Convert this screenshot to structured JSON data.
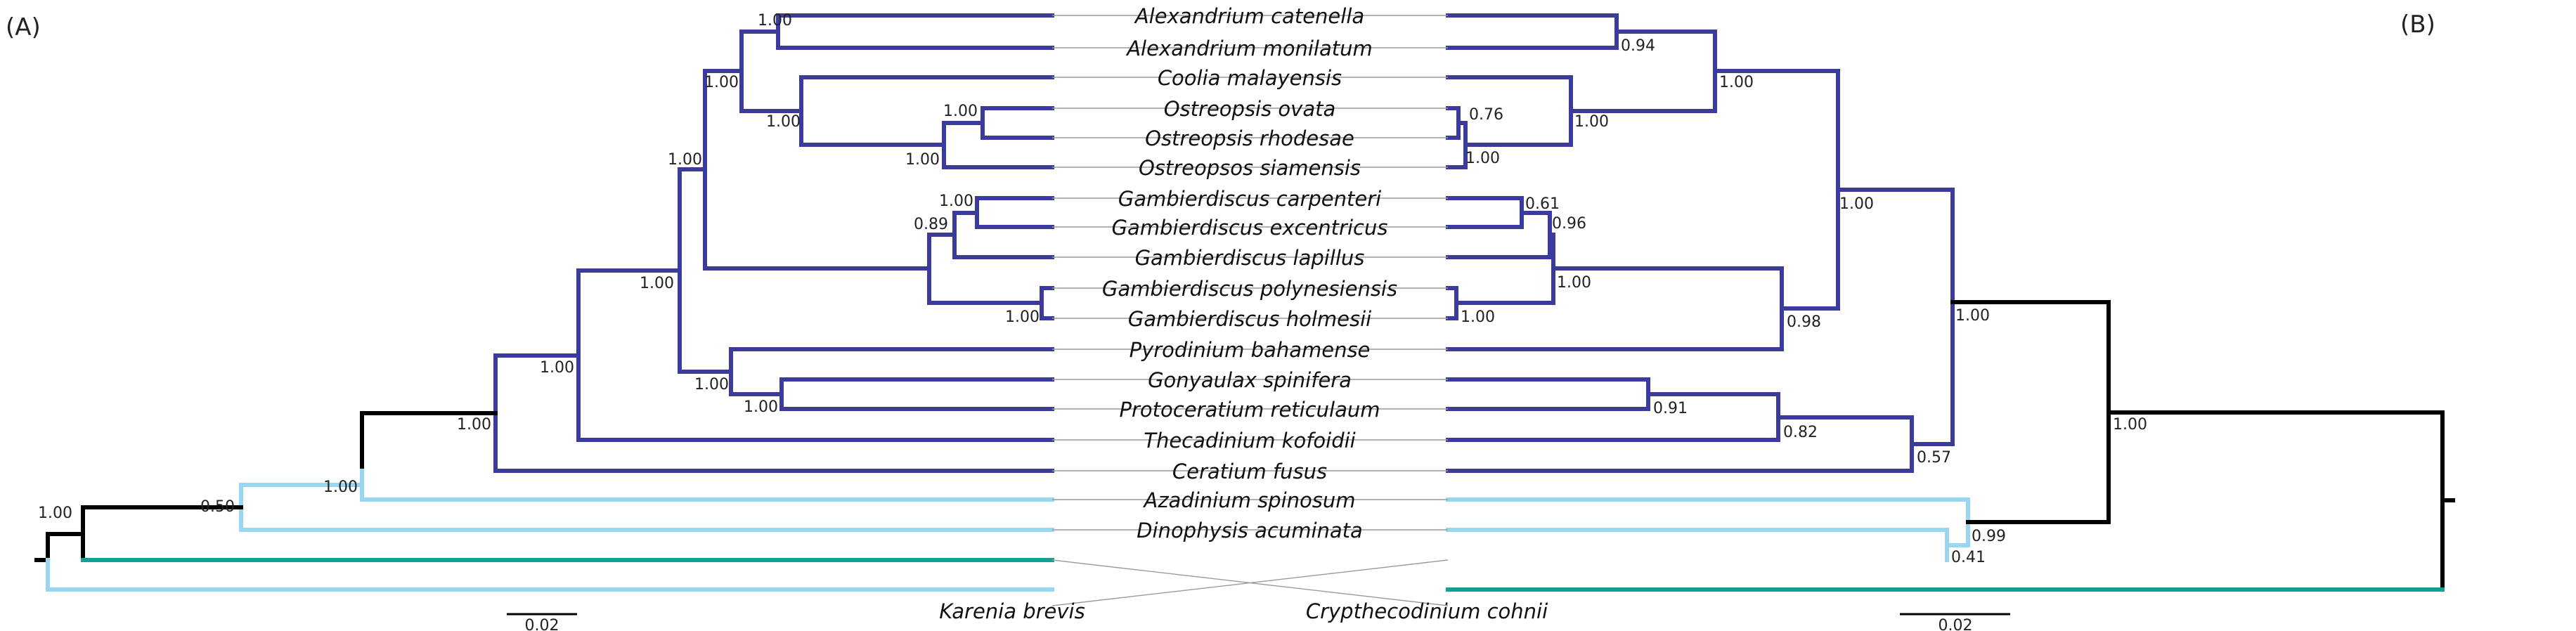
{
  "panels": {
    "left": "(A)",
    "right": "(B)"
  },
  "taxa": [
    "Alexandrium catenella",
    "Alexandrium monilatum",
    "Coolia malayensis",
    "Ostreopsis ovata",
    "Ostreopsis rhodesae",
    "Ostreopsos siamensis",
    "Gambierdiscus carpenteri",
    "Gambierdiscus excentricus",
    "Gambierdiscus lapillus",
    "Gambierdiscus polynesiensis",
    "Gambierdiscus holmesii",
    "Pyrodinium bahamense",
    "Gonyaulax spinifera",
    "Protoceratium reticulaum",
    "Thecadinium kofoidii",
    "Ceratium fusus",
    "Azadinium spinosum",
    "Dinophysis acuminata"
  ],
  "bottom_taxa": {
    "left": "Karenia brevis",
    "right": "Crypthecodinium cohnii"
  },
  "support_left": {
    "alex": "1.00",
    "alexcoolost": "1.00",
    "ost_ov_rh": "1.00",
    "ostreopsis": "1.00",
    "coolost": "1.00",
    "core": "1.00",
    "gamb_ce": "1.00",
    "gamb_cel": "0.89",
    "gonprot": "1.00",
    "pyrgon": "1.00",
    "tropthe": "1.00",
    "gamb_ph": "1.00",
    "cer": "1.00",
    "aza": "1.00",
    "dino": "1.00",
    "rootnode": "0.50",
    "root": "1.00"
  },
  "support_right": {
    "alex": "0.94",
    "ost_ov_rh": "0.76",
    "ostreopsis": "1.00",
    "coolost": "1.00",
    "alexcoolost": "1.00",
    "gamb_ce": "0.61",
    "gamb_cel": "0.96",
    "gamb_ph": "1.00",
    "gamb": "1.00",
    "big_blue": "1.00",
    "main": "0.98",
    "gonprot": "0.91",
    "gonthe": "0.82",
    "cer": "0.57",
    "cladeA": "1.00",
    "dino_aza": "0.41",
    "plus_kb": "0.99",
    "root": "1.00"
  },
  "scale": {
    "left": "0.02",
    "right": "0.02"
  },
  "colors": {
    "blue_clade": "#3b3b9e",
    "light_blue": "#99d6f2",
    "black": "#000000",
    "teal": "#139e96"
  }
}
